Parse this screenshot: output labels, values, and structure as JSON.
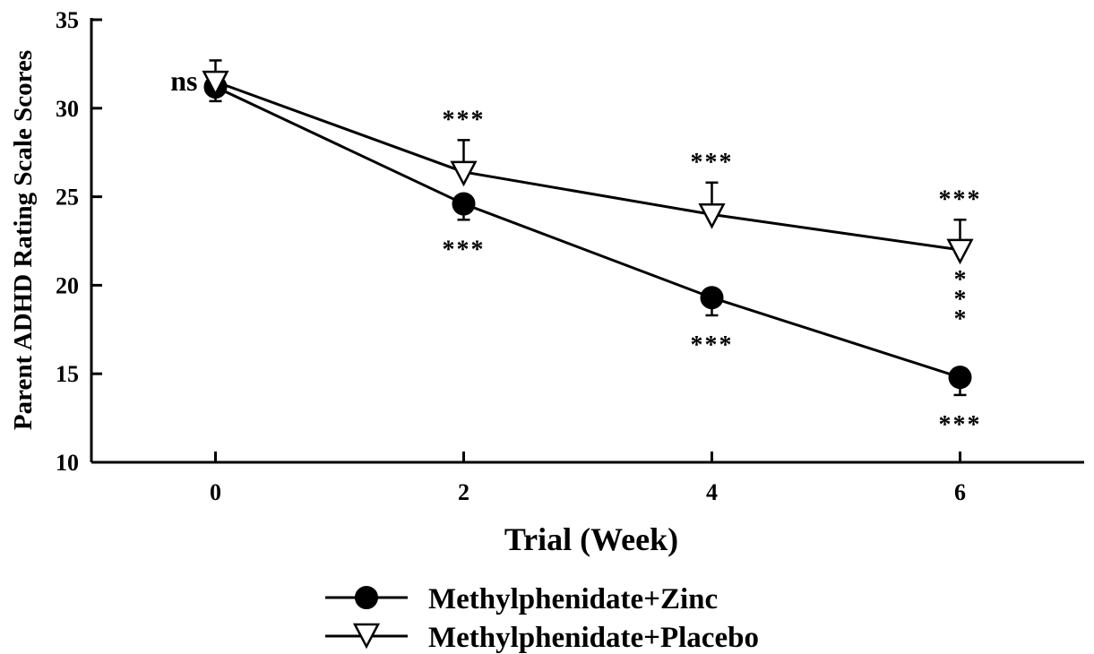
{
  "chart_data": {
    "type": "line",
    "title": "",
    "xlabel": "Trial (Week)",
    "ylabel": "Parent ADHD Rating Scale Scores",
    "x": [
      0,
      2,
      4,
      6
    ],
    "xticks": [
      0,
      2,
      4,
      6
    ],
    "xlim": [
      -1,
      7
    ],
    "ylim": [
      10,
      35
    ],
    "yticks": [
      10,
      15,
      20,
      25,
      30,
      35
    ],
    "grid": false,
    "legend_position": "bottom-center",
    "series": [
      {
        "name": "Methylphenidate+Zinc",
        "marker": "filled-circle",
        "values": [
          31.2,
          24.6,
          19.3,
          14.8
        ],
        "error": [
          0.8,
          0.9,
          1.0,
          1.0
        ],
        "error_direction": "down",
        "annotations": [
          "",
          "***",
          "***",
          "***"
        ]
      },
      {
        "name": "Methylphenidate+Placebo",
        "marker": "open-triangle-down",
        "values": [
          31.5,
          26.4,
          24.0,
          22.0
        ],
        "error": [
          1.2,
          1.8,
          1.8,
          1.7
        ],
        "error_direction": "up",
        "annotations": [
          "",
          "***",
          "***",
          "***"
        ]
      }
    ],
    "annotations": [
      {
        "x": 0,
        "text": "ns"
      },
      {
        "x": 6,
        "text": "***",
        "orientation": "vertical"
      }
    ]
  }
}
